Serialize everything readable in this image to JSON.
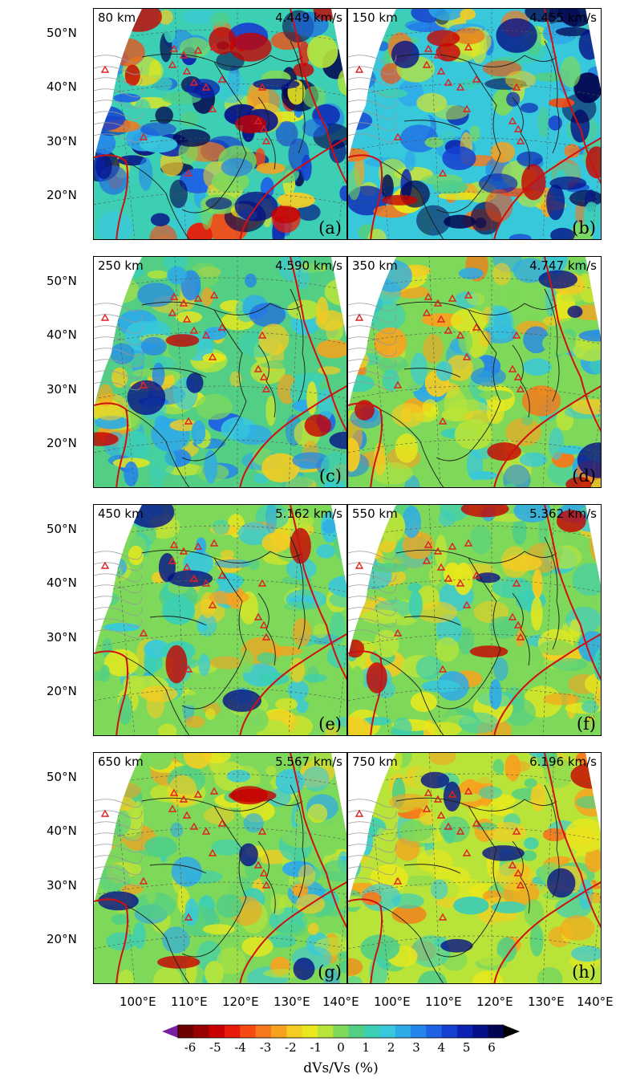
{
  "map": {
    "lat_labels": [
      "50°N",
      "40°N",
      "30°N",
      "20°N"
    ],
    "lon_labels": [
      "100°E",
      "110°E",
      "120°E",
      "130°E",
      "140°E"
    ],
    "panels": [
      {
        "depth": "80 km",
        "velocity": "4.449 km/s",
        "letter": "(a)",
        "seed": 11,
        "bias": 0.55,
        "theme": "shallow"
      },
      {
        "depth": "150 km",
        "velocity": "4.455 km/s",
        "letter": "(b)",
        "seed": 23,
        "bias": 0.6,
        "theme": "shallow"
      },
      {
        "depth": "250 km",
        "velocity": "4.590 km/s",
        "letter": "(c)",
        "seed": 37,
        "bias": 0.5,
        "theme": "mid"
      },
      {
        "depth": "350 km",
        "velocity": "4.747 km/s",
        "letter": "(d)",
        "seed": 41,
        "bias": 0.48,
        "theme": "mid"
      },
      {
        "depth": "450 km",
        "velocity": "5.162 km/s",
        "letter": "(e)",
        "seed": 53,
        "bias": 0.47,
        "theme": "deep"
      },
      {
        "depth": "550 km",
        "velocity": "5.362 km/s",
        "letter": "(f)",
        "seed": 67,
        "bias": 0.47,
        "theme": "deep"
      },
      {
        "depth": "650 km",
        "velocity": "5.567 km/s",
        "letter": "(g)",
        "seed": 71,
        "bias": 0.47,
        "theme": "deep"
      },
      {
        "depth": "750 km",
        "velocity": "6.196 km/s",
        "letter": "(h)",
        "seed": 89,
        "bias": 0.45,
        "theme": "deep"
      }
    ],
    "colorbar": {
      "ticks": [
        "-6",
        "-5",
        "-4",
        "-3",
        "-2",
        "-1",
        "0",
        "1",
        "2",
        "3",
        "4",
        "5",
        "6"
      ],
      "title": "dVs/Vs (%)",
      "colors": [
        "#6e0000",
        "#9a0000",
        "#c80000",
        "#e81c0c",
        "#f54a12",
        "#f7781a",
        "#f7a21e",
        "#f4cc22",
        "#e8e81c",
        "#b8e43a",
        "#7ed85a",
        "#52cf84",
        "#3ccfb4",
        "#38c8dc",
        "#2eaae8",
        "#2486ea",
        "#1e62e6",
        "#1640d2",
        "#0c22b2",
        "#061088",
        "#020650"
      ]
    },
    "colors": {
      "plate_boundary": "#d01010",
      "volcano_marker": "#e02020",
      "coastline": "#1a1a1a",
      "graticule": "#555555"
    }
  }
}
